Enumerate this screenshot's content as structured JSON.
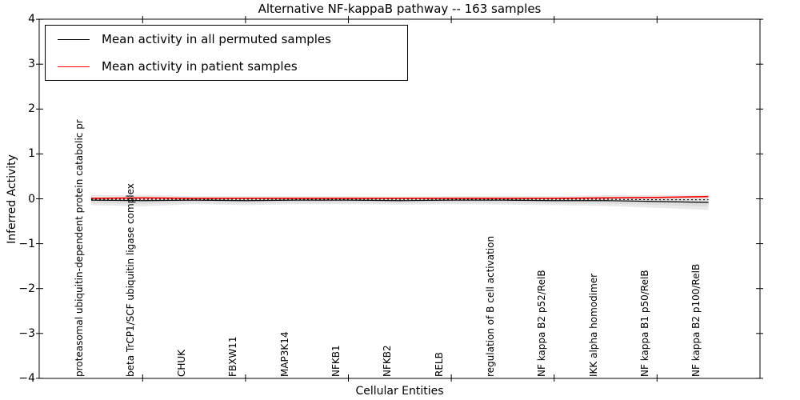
{
  "figure": {
    "title": "Alternative NF-kappaB pathway -- 163 samples"
  },
  "legend": {
    "items": [
      {
        "label": "Mean activity in all permuted samples",
        "color": "#000000"
      },
      {
        "label": "Mean activity in patient samples",
        "color": "#ff0000"
      }
    ],
    "position": "upper left"
  },
  "chart_data": {
    "type": "line",
    "title": "Alternative NF-kappaB pathway -- 163 samples",
    "xlabel": "Cellular Entities",
    "ylabel": "Inferred Activity",
    "ylim": [
      -4,
      4
    ],
    "yticks": [
      4,
      3,
      2,
      1,
      0,
      -1,
      -2,
      -3,
      -4
    ],
    "yticklabels": [
      "4",
      "3",
      "2",
      "1",
      "0",
      "−1",
      "−2",
      "−3",
      "−4"
    ],
    "grid": false,
    "legend_position": "upper left",
    "categories": [
      "proteasomal ubiquitin-dependent protein catabolic pr",
      "beta TrCP1/SCF ubiquitin ligase complex",
      "CHUK",
      "FBXW11",
      "MAP3K14",
      "NFKB1",
      "NFKB2",
      "RELB",
      "regulation of B cell activation",
      "NF kappa B2 p52/RelB",
      "IKK alpha homodimer",
      "NF kappa B1 p50/RelB",
      "NF kappa B2 p100/RelB"
    ],
    "xtick_mark_indices": [
      1,
      3,
      5,
      7,
      9,
      11
    ],
    "series": [
      {
        "name": "Mean activity in all permuted samples",
        "color": "#000000",
        "style": "solid",
        "values": [
          -0.03,
          -0.04,
          -0.03,
          -0.04,
          -0.03,
          -0.03,
          -0.04,
          -0.03,
          -0.03,
          -0.04,
          -0.04,
          -0.06,
          -0.08
        ]
      },
      {
        "name": "Mean activity in patient samples",
        "color": "#ff0000",
        "style": "solid",
        "values": [
          0.01,
          0.02,
          0.01,
          0.01,
          0.01,
          0.01,
          0.01,
          0.01,
          0.01,
          0.01,
          0.02,
          0.03,
          0.05
        ]
      }
    ],
    "dotted_overlay": {
      "color": "#000000",
      "style": "dotted",
      "values": [
        -0.01,
        -0.01,
        -0.01,
        -0.01,
        -0.01,
        -0.01,
        -0.01,
        -0.01,
        -0.01,
        -0.01,
        -0.01,
        -0.02,
        -0.02
      ]
    },
    "band": {
      "description": "gray uncertainty band around permuted mean",
      "color": "#bbbbbb",
      "half_widths": [
        0.11,
        0.13,
        0.09,
        0.1,
        0.09,
        0.09,
        0.09,
        0.09,
        0.1,
        0.1,
        0.12,
        0.14,
        0.17
      ]
    }
  }
}
